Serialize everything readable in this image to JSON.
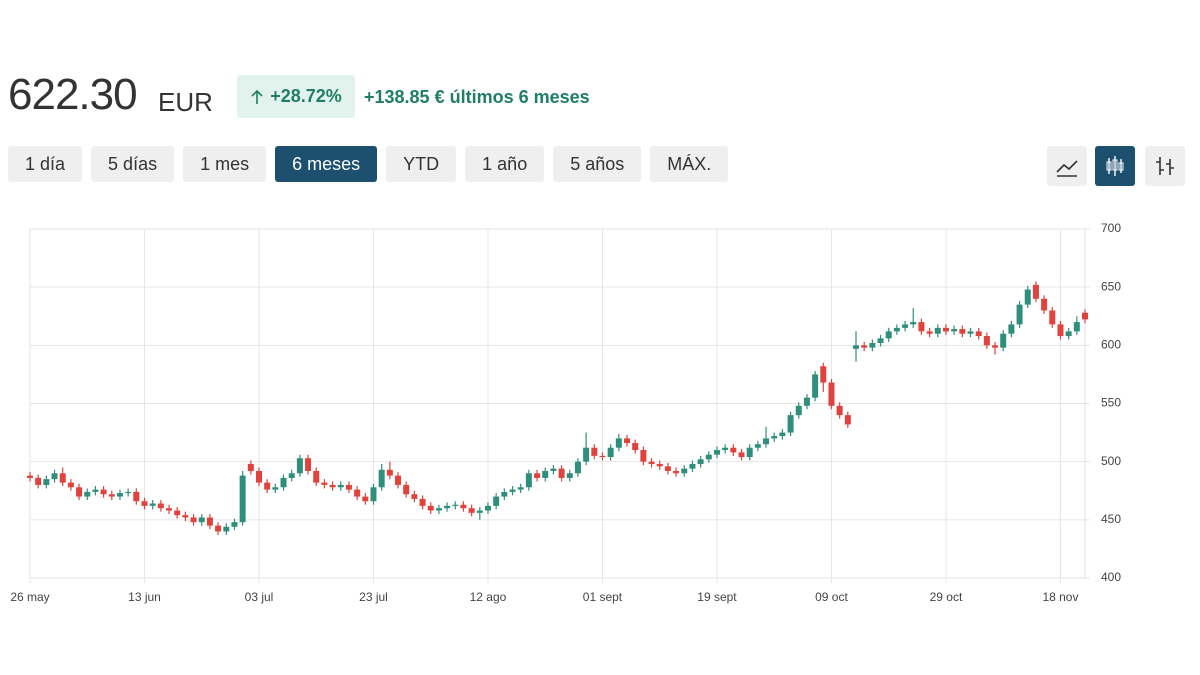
{
  "header": {
    "price": "622.30",
    "currency": "EUR",
    "change_pct": "+28.72%",
    "change_abs": "+138.85 €",
    "period": "últimos 6 meses"
  },
  "ranges": [
    "1 día",
    "5 días",
    "1 mes",
    "6 meses",
    "YTD",
    "1 año",
    "5 años",
    "MÁX."
  ],
  "active_range": 3,
  "chart_data": {
    "type": "candlestick",
    "categories": [
      "26 may",
      null,
      null,
      null,
      null,
      null,
      null,
      null,
      null,
      null,
      null,
      null,
      null,
      null,
      "13 jun",
      null,
      null,
      null,
      null,
      null,
      null,
      null,
      null,
      null,
      null,
      null,
      null,
      null,
      "03 jul",
      null,
      null,
      null,
      null,
      null,
      null,
      null,
      null,
      null,
      null,
      null,
      null,
      null,
      "23 jul",
      null,
      null,
      null,
      null,
      null,
      null,
      null,
      null,
      null,
      null,
      null,
      null,
      null,
      "12 ago",
      null,
      null,
      null,
      null,
      null,
      null,
      null,
      null,
      null,
      null,
      null,
      null,
      null,
      "01 sept",
      null,
      null,
      null,
      null,
      null,
      null,
      null,
      null,
      null,
      null,
      null,
      null,
      null,
      "19 sept",
      null,
      null,
      null,
      null,
      null,
      null,
      null,
      null,
      null,
      null,
      null,
      null,
      null,
      "09 oct",
      null,
      null,
      null,
      null,
      null,
      null,
      null,
      null,
      null,
      null,
      null,
      null,
      null,
      "29 oct",
      null,
      null,
      null,
      null,
      null,
      null,
      null,
      null,
      null,
      null,
      null,
      null,
      null,
      "18 nov",
      null,
      null,
      null
    ],
    "open": [
      488,
      486,
      480,
      485,
      490,
      482,
      478,
      470,
      474,
      476,
      472,
      470,
      473,
      474,
      466,
      462,
      464,
      460,
      458,
      454,
      452,
      448,
      452,
      445,
      440,
      444,
      448,
      498,
      492,
      482,
      476,
      478,
      486,
      490,
      503,
      492,
      482,
      480,
      478,
      480,
      476,
      470,
      466,
      478,
      493,
      488,
      480,
      472,
      468,
      462,
      458,
      460,
      462,
      463,
      460,
      456,
      458,
      462,
      470,
      474,
      476,
      478,
      490,
      486,
      492,
      494,
      486,
      490,
      500,
      512,
      505,
      504,
      512,
      520,
      516,
      510,
      500,
      498,
      496,
      492,
      490,
      494,
      498,
      502,
      506,
      510,
      512,
      508,
      504,
      512,
      515,
      520,
      522,
      525,
      540,
      548,
      555,
      582,
      568,
      548,
      540,
      597,
      600,
      598,
      602,
      606,
      612,
      615,
      618,
      620,
      612,
      610,
      615,
      612,
      614,
      610,
      612,
      608,
      600,
      598,
      610,
      618,
      635,
      652,
      640,
      630,
      618,
      608,
      612,
      628
    ],
    "high": [
      491,
      489,
      488,
      493,
      495,
      485,
      481,
      477,
      479,
      479,
      475,
      476,
      477,
      477,
      469,
      467,
      467,
      463,
      461,
      457,
      455,
      455,
      455,
      448,
      447,
      451,
      492,
      501,
      495,
      485,
      481,
      489,
      493,
      506,
      506,
      495,
      485,
      483,
      483,
      483,
      479,
      473,
      481,
      498,
      500,
      491,
      483,
      475,
      471,
      465,
      463,
      465,
      466,
      466,
      463,
      461,
      465,
      473,
      477,
      479,
      481,
      493,
      493,
      495,
      497,
      497,
      493,
      503,
      525,
      515,
      508,
      515,
      524,
      523,
      519,
      513,
      503,
      501,
      499,
      495,
      497,
      501,
      505,
      509,
      513,
      515,
      515,
      511,
      515,
      518,
      530,
      525,
      528,
      543,
      551,
      558,
      578,
      585,
      571,
      551,
      543,
      612,
      603,
      605,
      609,
      615,
      618,
      621,
      632,
      623,
      615,
      618,
      618,
      617,
      617,
      615,
      615,
      611,
      603,
      613,
      621,
      638,
      651,
      655,
      643,
      633,
      621,
      615,
      625,
      631
    ],
    "low": [
      483,
      477,
      477,
      482,
      479,
      475,
      467,
      467,
      471,
      469,
      467,
      467,
      470,
      463,
      459,
      459,
      457,
      455,
      451,
      449,
      445,
      445,
      442,
      437,
      437,
      441,
      445,
      489,
      479,
      473,
      473,
      475,
      483,
      487,
      489,
      479,
      477,
      475,
      475,
      473,
      467,
      463,
      463,
      475,
      485,
      477,
      469,
      465,
      459,
      455,
      455,
      457,
      459,
      457,
      453,
      450,
      455,
      459,
      467,
      471,
      473,
      475,
      483,
      483,
      489,
      483,
      483,
      487,
      497,
      502,
      501,
      501,
      509,
      513,
      507,
      497,
      495,
      493,
      489,
      487,
      487,
      491,
      495,
      499,
      503,
      507,
      505,
      501,
      501,
      509,
      512,
      517,
      519,
      522,
      537,
      545,
      552,
      560,
      545,
      537,
      529,
      586,
      595,
      595,
      599,
      603,
      609,
      612,
      615,
      609,
      607,
      607,
      609,
      609,
      607,
      607,
      605,
      597,
      592,
      595,
      607,
      615,
      632,
      637,
      627,
      615,
      605,
      605,
      609,
      619
    ],
    "close": [
      486,
      480,
      485,
      490,
      482,
      478,
      470,
      474,
      476,
      472,
      470,
      473,
      474,
      466,
      462,
      464,
      460,
      458,
      454,
      452,
      448,
      452,
      445,
      440,
      444,
      448,
      488,
      492,
      482,
      476,
      478,
      486,
      490,
      503,
      492,
      482,
      480,
      478,
      480,
      476,
      470,
      466,
      478,
      493,
      488,
      480,
      472,
      468,
      462,
      458,
      460,
      462,
      463,
      460,
      456,
      458,
      462,
      470,
      474,
      476,
      478,
      490,
      486,
      492,
      494,
      486,
      490,
      500,
      512,
      505,
      504,
      512,
      520,
      516,
      510,
      500,
      498,
      496,
      492,
      490,
      494,
      498,
      502,
      506,
      510,
      512,
      508,
      504,
      512,
      515,
      520,
      522,
      525,
      540,
      548,
      555,
      575,
      568,
      548,
      540,
      532,
      600,
      598,
      602,
      606,
      612,
      615,
      618,
      620,
      612,
      610,
      615,
      612,
      614,
      610,
      612,
      608,
      600,
      598,
      610,
      618,
      635,
      648,
      640,
      630,
      618,
      608,
      612,
      620,
      622.3
    ],
    "up_color": "#2f8f7c",
    "down_color": "#e0433d",
    "ylim": [
      400,
      700
    ],
    "yticks": [
      400,
      450,
      500,
      550,
      600,
      650,
      700
    ],
    "grid": true
  }
}
